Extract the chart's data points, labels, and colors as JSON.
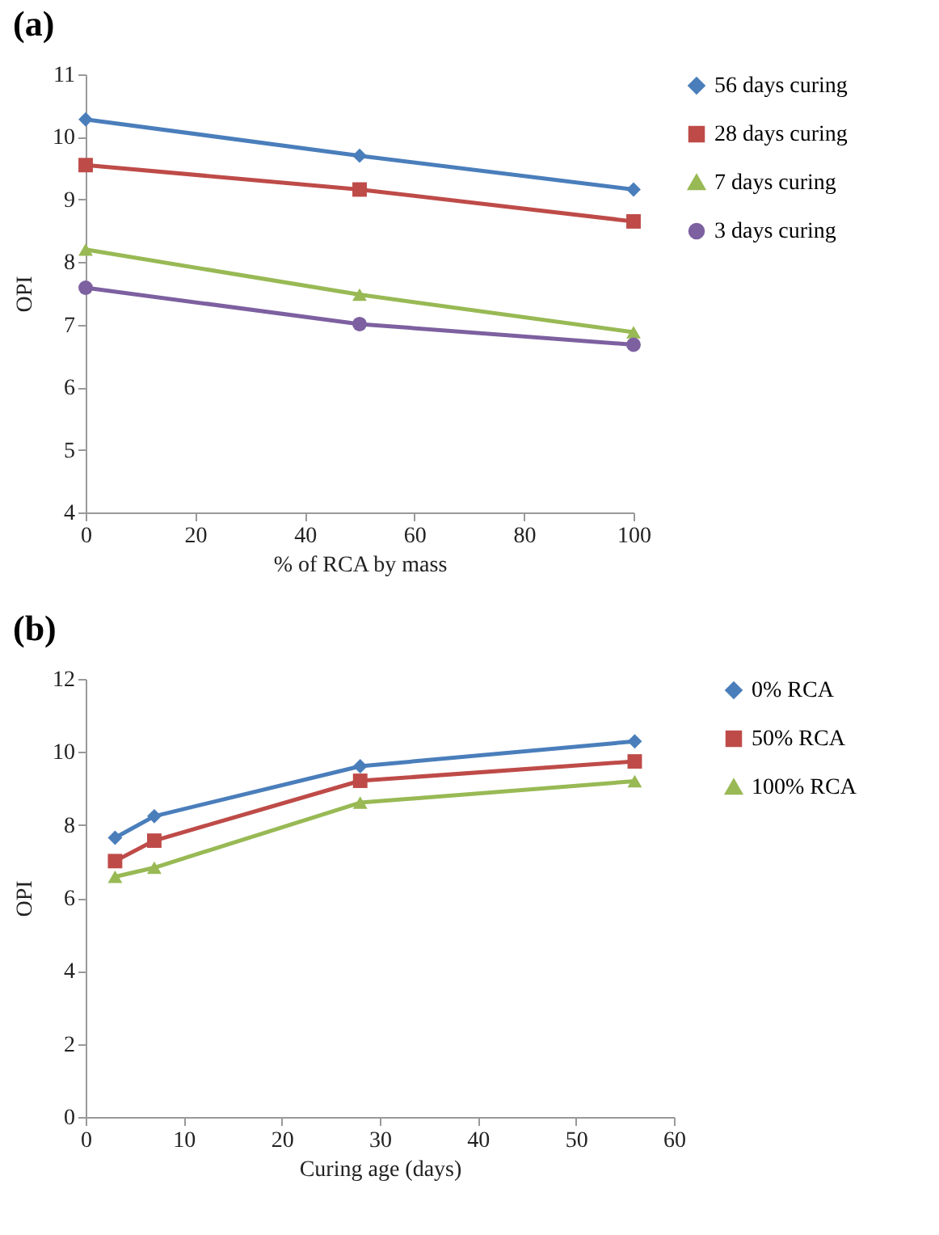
{
  "chart_data": [
    {
      "type": "line",
      "title": "(a)",
      "xlabel": "% of RCA by mass",
      "ylabel": "OPI",
      "x": [
        0,
        50,
        100
      ],
      "xlim": [
        0,
        100
      ],
      "xticks": [
        0,
        20,
        40,
        60,
        80,
        100
      ],
      "ylim": [
        4,
        11
      ],
      "yticks": [
        4,
        5,
        6,
        7,
        8,
        9,
        10,
        11
      ],
      "grid": false,
      "legend": "right",
      "line_style": "solid",
      "series": [
        {
          "name": "56 days curing",
          "color": "#4a7ebb",
          "marker": "diamond",
          "values": [
            10.28,
            9.7,
            9.16
          ]
        },
        {
          "name": "28 days curing",
          "color": "#be4b48",
          "marker": "square",
          "values": [
            9.55,
            9.16,
            8.65
          ]
        },
        {
          "name": "7 days curing",
          "color": "#98b954",
          "marker": "triangle",
          "values": [
            8.2,
            7.48,
            6.88
          ]
        },
        {
          "name": "3 days curing",
          "color": "#7d60a0",
          "marker": "circle",
          "values": [
            7.59,
            7.01,
            6.68
          ]
        }
      ]
    },
    {
      "type": "line",
      "title": "(b)",
      "xlabel": "Curing age (days)",
      "ylabel": "OPI",
      "x": [
        3,
        7,
        28,
        56
      ],
      "xlim": [
        0,
        60
      ],
      "xticks": [
        0,
        10,
        20,
        30,
        40,
        50,
        60
      ],
      "ylim": [
        0,
        12
      ],
      "yticks": [
        0,
        2,
        4,
        6,
        8,
        10,
        12
      ],
      "grid": false,
      "legend": "right",
      "line_style": "solid",
      "series": [
        {
          "name": "0% RCA",
          "color": "#4a7ebb",
          "marker": "diamond",
          "values": [
            7.65,
            8.24,
            9.61,
            10.29
          ]
        },
        {
          "name": "50% RCA",
          "color": "#be4b48",
          "marker": "square",
          "values": [
            7.01,
            7.57,
            9.21,
            9.74
          ]
        },
        {
          "name": "100% RCA",
          "color": "#98b954",
          "marker": "triangle",
          "values": [
            6.58,
            6.83,
            8.61,
            9.2
          ]
        }
      ]
    }
  ]
}
